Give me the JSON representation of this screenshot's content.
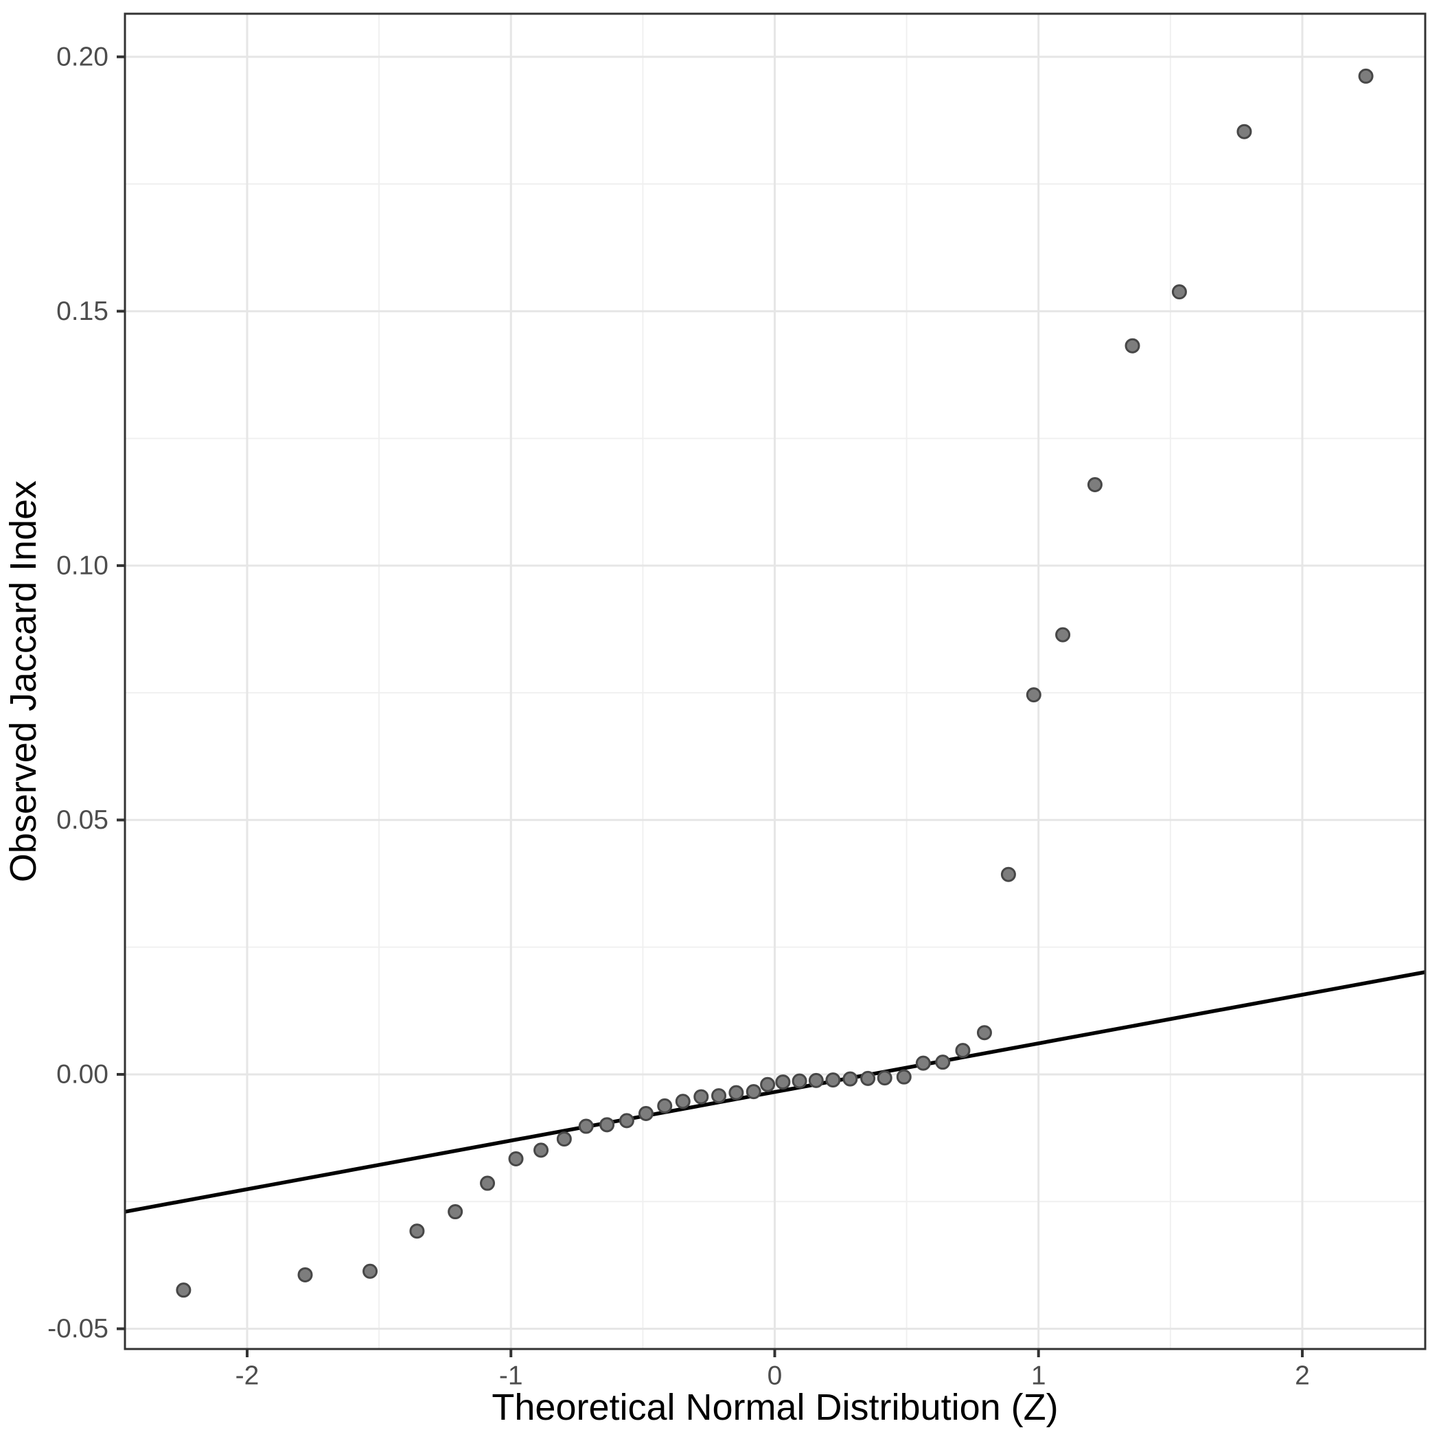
{
  "chart_data": {
    "type": "scatter",
    "title": "",
    "xlabel": "Theoretical Normal Distribution (Z)",
    "ylabel": "Observed Jaccard Index",
    "xlim": [
      -2.4632,
      2.4659
    ],
    "ylim": [
      -0.05398,
      0.20847
    ],
    "grid": true,
    "legend_position": "none",
    "x_ticks": [
      {
        "v": -2,
        "label": "-2"
      },
      {
        "v": -1,
        "label": "-1"
      },
      {
        "v": 0,
        "label": "0"
      },
      {
        "v": 1,
        "label": "1"
      },
      {
        "v": 2,
        "label": "2"
      }
    ],
    "y_ticks": [
      {
        "v": 0.2,
        "label": "0.20"
      },
      {
        "v": 0.15,
        "label": "0.15"
      },
      {
        "v": 0.1,
        "label": "0.10"
      },
      {
        "v": 0.05,
        "label": "0.05"
      },
      {
        "v": 0.0,
        "label": "0.00"
      },
      {
        "v": -0.05,
        "label": "-0.05"
      }
    ],
    "x_minor": [
      -1.5,
      -0.5,
      0.5,
      1.5
    ],
    "y_minor": [
      0.175,
      0.125,
      0.075,
      0.025,
      -0.025
    ],
    "points": [
      [
        -2.241,
        -0.0424
      ],
      [
        -1.78,
        -0.0394
      ],
      [
        -1.534,
        -0.0387
      ],
      [
        -1.356,
        -0.0308
      ],
      [
        -1.211,
        -0.027
      ],
      [
        -1.089,
        -0.0214
      ],
      [
        -0.981,
        -0.0166
      ],
      [
        -0.886,
        -0.0149
      ],
      [
        -0.798,
        -0.0127
      ],
      [
        -0.715,
        -0.0102
      ],
      [
        -0.636,
        -0.0099
      ],
      [
        -0.561,
        -0.0091
      ],
      [
        -0.488,
        -0.0077
      ],
      [
        -0.417,
        -0.0062
      ],
      [
        -0.348,
        -0.0053
      ],
      [
        -0.279,
        -0.0044
      ],
      [
        -0.212,
        -0.0042
      ],
      [
        -0.146,
        -0.0036
      ],
      [
        -0.08,
        -0.0034
      ],
      [
        -0.027,
        -0.002
      ],
      [
        0.031,
        -0.0015
      ],
      [
        0.094,
        -0.0013
      ],
      [
        0.157,
        -0.0012
      ],
      [
        0.221,
        -0.0011
      ],
      [
        0.286,
        -0.0009
      ],
      [
        0.353,
        -0.0008
      ],
      [
        0.417,
        -0.0007
      ],
      [
        0.49,
        -0.0005
      ],
      [
        0.563,
        0.0022
      ],
      [
        0.637,
        0.0024
      ],
      [
        0.713,
        0.0047
      ],
      [
        0.795,
        0.0082
      ],
      [
        0.886,
        0.0393
      ],
      [
        0.982,
        0.0746
      ],
      [
        1.092,
        0.0864
      ],
      [
        1.214,
        0.1159
      ],
      [
        1.356,
        0.1432
      ],
      [
        1.534,
        0.1538
      ],
      [
        1.78,
        0.1853
      ],
      [
        2.241,
        0.1962
      ]
    ],
    "reference_line": {
      "x1": -2.4632,
      "y1": -0.027,
      "x2": 2.4659,
      "y2": 0.0201
    },
    "colors": {
      "background": "#ffffff",
      "panel_background": "#ffffff",
      "panel_border": "#333333",
      "grid_major": "#e6e6e6",
      "grid_minor": "#f0f0f0",
      "tick_mark": "#333333",
      "tick_text": "#4d4d4d",
      "axis_title": "#000000",
      "point_fill": "#7d7d7d",
      "point_stroke": "#474747",
      "reference_line": "#000000"
    }
  }
}
